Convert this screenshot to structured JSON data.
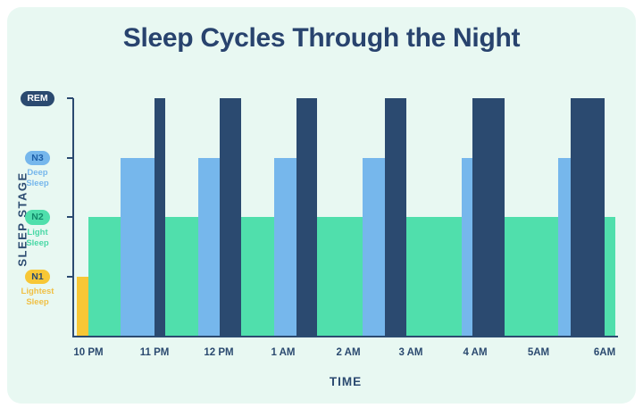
{
  "page": {
    "outer_background": "#ffffff",
    "card_background": "#e8f8f2"
  },
  "chart_data": {
    "type": "bar",
    "title": "Sleep Cycles Through the Night",
    "title_color": "#28436e",
    "xlabel": "TIME",
    "ylabel": "SLEEP STAGE",
    "axis_color": "#2b4a70",
    "grid": false,
    "legend_position": "none",
    "x_unit_note": "start_h and end_h are hours after 10 PM, estimated from axis",
    "x_ticks": [
      {
        "label": "10 PM",
        "x_pct": 2.96
      },
      {
        "label": "11 PM",
        "x_pct": 15.11
      },
      {
        "label": "12 PM",
        "x_pct": 26.93
      },
      {
        "label": "1 AM",
        "x_pct": 38.75
      },
      {
        "label": "2 AM",
        "x_pct": 50.74
      },
      {
        "label": "3 AM",
        "x_pct": 62.23
      },
      {
        "label": "4 AM",
        "x_pct": 74.06
      },
      {
        "label": "5AM",
        "x_pct": 85.71
      },
      {
        "label": "6AM",
        "x_pct": 97.87
      }
    ],
    "y_axis": {
      "stages": [
        {
          "id": "REM",
          "label": "REM",
          "sublabel": "",
          "level": 1.0,
          "badge_bg": "#2b4a70",
          "badge_text": "#ffffff",
          "sublabel_color": ""
        },
        {
          "id": "N3",
          "label": "N3",
          "sublabel": "Deep\nSleep",
          "level": 0.75,
          "badge_bg": "#76b7ec",
          "badge_text": "#1d5fa8",
          "sublabel_color": "#76b7ec"
        },
        {
          "id": "N2",
          "label": "N2",
          "sublabel": "Light\nSleep",
          "level": 0.5,
          "badge_bg": "#50dfac",
          "badge_text": "#12896a",
          "sublabel_color": "#4ad8a6"
        },
        {
          "id": "N1",
          "label": "N1",
          "sublabel": "Lightest\nSleep",
          "level": 0.25,
          "badge_bg": "#f7c736",
          "badge_text": "#2b4a70",
          "sublabel_color": "#f0c045"
        }
      ]
    },
    "colors": {
      "REM": "#2b4a70",
      "N3": "#76b7ec",
      "N2": "#50dfac",
      "N1": "#f7c736"
    },
    "bars": [
      {
        "stage": "N2",
        "cycle": null,
        "x_pct": 2.63,
        "w_pct": 96.88,
        "start_h": 0.0,
        "end_h": 8.1
      },
      {
        "stage": "N1",
        "cycle": null,
        "x_pct": 0.49,
        "w_pct": 2.14,
        "start_h": -0.2,
        "end_h": 0.0
      },
      {
        "stage": "N3",
        "cycle": 1,
        "x_pct": 8.54,
        "w_pct": 6.4,
        "start_h": 0.45,
        "end_h": 1.0
      },
      {
        "stage": "REM",
        "cycle": 1,
        "x_pct": 14.78,
        "w_pct": 1.97,
        "start_h": 1.0,
        "end_h": 1.15
      },
      {
        "stage": "N3",
        "cycle": 2,
        "x_pct": 22.82,
        "w_pct": 4.11,
        "start_h": 1.65,
        "end_h": 2.0
      },
      {
        "stage": "REM",
        "cycle": 2,
        "x_pct": 26.77,
        "w_pct": 3.94,
        "start_h": 2.0,
        "end_h": 2.35
      },
      {
        "stage": "N3",
        "cycle": 3,
        "x_pct": 36.78,
        "w_pct": 4.11,
        "start_h": 2.85,
        "end_h": 3.2
      },
      {
        "stage": "REM",
        "cycle": 3,
        "x_pct": 40.89,
        "w_pct": 3.78,
        "start_h": 3.2,
        "end_h": 3.5
      },
      {
        "stage": "N3",
        "cycle": 4,
        "x_pct": 53.04,
        "w_pct": 4.27,
        "start_h": 4.2,
        "end_h": 4.55
      },
      {
        "stage": "REM",
        "cycle": 4,
        "x_pct": 57.14,
        "w_pct": 3.94,
        "start_h": 4.55,
        "end_h": 4.9
      },
      {
        "stage": "N3",
        "cycle": 5,
        "x_pct": 71.26,
        "w_pct": 2.46,
        "start_h": 5.75,
        "end_h": 5.95
      },
      {
        "stage": "REM",
        "cycle": 5,
        "x_pct": 73.23,
        "w_pct": 5.91,
        "start_h": 5.95,
        "end_h": 6.45
      },
      {
        "stage": "N3",
        "cycle": 6,
        "x_pct": 89.0,
        "w_pct": 2.3,
        "start_h": 7.25,
        "end_h": 7.45
      },
      {
        "stage": "REM",
        "cycle": 6,
        "x_pct": 91.3,
        "w_pct": 6.24,
        "start_h": 7.45,
        "end_h": 7.95
      }
    ]
  }
}
